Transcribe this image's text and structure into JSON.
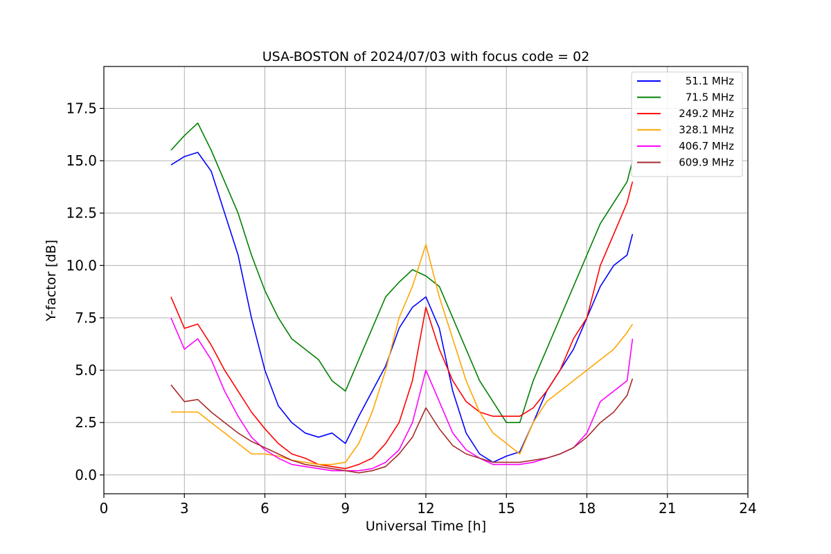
{
  "chart_data": {
    "type": "line",
    "title": "USA-BOSTON of 2024/07/03 with focus code = 02",
    "xlabel": "Universal Time [h]",
    "ylabel": "Y-factor [dB]",
    "xlim": [
      0,
      24
    ],
    "ylim": [
      -0.9,
      19.5
    ],
    "x_ticks": [
      0,
      3,
      6,
      9,
      12,
      15,
      18,
      21,
      24
    ],
    "y_ticks": [
      0.0,
      2.5,
      5.0,
      7.5,
      10.0,
      12.5,
      15.0,
      17.5
    ],
    "y_tick_labels": [
      "0.0",
      "2.5",
      "5.0",
      "7.5",
      "10.0",
      "12.5",
      "15.0",
      "17.5"
    ],
    "grid": true,
    "legend_position": "top-right",
    "series": [
      {
        "name": "51.1 MHz",
        "color": "#0000ff",
        "x": [
          2.5,
          3.0,
          3.5,
          4.0,
          4.5,
          5.0,
          5.5,
          6.0,
          6.5,
          7.0,
          7.5,
          8.0,
          8.5,
          9.0,
          9.5,
          10.0,
          10.5,
          11.0,
          11.5,
          12.0,
          12.5,
          13.0,
          13.5,
          14.0,
          14.5,
          15.0,
          15.5,
          16.0,
          16.5,
          17.0,
          17.5,
          18.0,
          18.5,
          19.0,
          19.5,
          19.7
        ],
        "values": [
          14.8,
          15.2,
          15.4,
          14.5,
          12.5,
          10.5,
          7.5,
          5.0,
          3.3,
          2.5,
          2.0,
          1.8,
          2.0,
          1.5,
          2.8,
          4.0,
          5.2,
          7.0,
          8.0,
          8.5,
          7.0,
          4.0,
          2.0,
          1.0,
          0.6,
          0.9,
          1.1,
          2.5,
          4.0,
          5.0,
          6.0,
          7.5,
          9.0,
          10.0,
          10.5,
          11.5
        ]
      },
      {
        "name": "71.5 MHz",
        "color": "#008000",
        "x": [
          2.5,
          3.0,
          3.5,
          4.0,
          4.5,
          5.0,
          5.5,
          6.0,
          6.5,
          7.0,
          7.5,
          8.0,
          8.5,
          9.0,
          9.5,
          10.0,
          10.5,
          11.0,
          11.5,
          12.0,
          12.5,
          13.0,
          13.5,
          14.0,
          14.5,
          15.0,
          15.5,
          16.0,
          16.5,
          17.0,
          17.5,
          18.0,
          18.5,
          19.0,
          19.5,
          19.7
        ],
        "values": [
          15.5,
          16.2,
          16.8,
          15.5,
          14.0,
          12.5,
          10.5,
          8.8,
          7.5,
          6.5,
          6.0,
          5.5,
          4.5,
          4.0,
          5.5,
          7.0,
          8.5,
          9.2,
          9.8,
          9.5,
          9.0,
          7.5,
          6.0,
          4.5,
          3.5,
          2.5,
          2.5,
          4.5,
          6.0,
          7.5,
          9.0,
          10.5,
          12.0,
          13.0,
          14.0,
          15.0
        ]
      },
      {
        "name": "249.2 MHz",
        "color": "#ff0000",
        "x": [
          2.5,
          3.0,
          3.5,
          4.0,
          4.5,
          5.0,
          5.5,
          6.0,
          6.5,
          7.0,
          7.5,
          8.0,
          8.5,
          9.0,
          9.5,
          10.0,
          10.5,
          11.0,
          11.5,
          12.0,
          12.5,
          13.0,
          13.5,
          14.0,
          14.5,
          15.0,
          15.5,
          16.0,
          16.5,
          17.0,
          17.5,
          18.0,
          18.5,
          19.0,
          19.5,
          19.7
        ],
        "values": [
          8.5,
          7.0,
          7.2,
          6.2,
          5.0,
          4.0,
          3.0,
          2.2,
          1.5,
          1.0,
          0.8,
          0.5,
          0.4,
          0.3,
          0.5,
          0.8,
          1.5,
          2.5,
          4.5,
          8.0,
          6.0,
          4.5,
          3.5,
          3.0,
          2.8,
          2.8,
          2.8,
          3.2,
          4.0,
          5.0,
          6.5,
          7.5,
          10.0,
          11.5,
          13.0,
          14.0
        ]
      },
      {
        "name": "328.1 MHz",
        "color": "#ffa500",
        "x": [
          2.5,
          3.0,
          3.5,
          4.0,
          4.5,
          5.0,
          5.5,
          6.0,
          6.5,
          7.0,
          7.5,
          8.0,
          8.5,
          9.0,
          9.5,
          10.0,
          10.5,
          11.0,
          11.5,
          12.0,
          12.5,
          13.0,
          13.5,
          14.0,
          14.5,
          15.0,
          15.5,
          16.0,
          16.5,
          17.0,
          17.5,
          18.0,
          18.5,
          19.0,
          19.5,
          19.7
        ],
        "values": [
          3.0,
          3.0,
          3.0,
          2.5,
          2.0,
          1.5,
          1.0,
          1.0,
          0.9,
          0.7,
          0.6,
          0.5,
          0.5,
          0.6,
          1.5,
          3.0,
          5.0,
          7.5,
          9.0,
          11.0,
          8.5,
          6.5,
          4.5,
          3.0,
          2.0,
          1.5,
          1.0,
          2.5,
          3.5,
          4.0,
          4.5,
          5.0,
          5.5,
          6.0,
          6.8,
          7.2
        ]
      },
      {
        "name": "406.7 MHz",
        "color": "#ff00ff",
        "x": [
          2.5,
          3.0,
          3.5,
          4.0,
          4.5,
          5.0,
          5.5,
          6.0,
          6.5,
          7.0,
          7.5,
          8.0,
          8.5,
          9.0,
          9.5,
          10.0,
          10.5,
          11.0,
          11.5,
          12.0,
          12.5,
          13.0,
          13.5,
          14.0,
          14.5,
          15.0,
          15.5,
          16.0,
          16.5,
          17.0,
          17.5,
          18.0,
          18.5,
          19.0,
          19.5,
          19.7
        ],
        "values": [
          7.5,
          6.0,
          6.5,
          5.5,
          4.0,
          2.8,
          1.8,
          1.2,
          0.8,
          0.5,
          0.4,
          0.3,
          0.2,
          0.2,
          0.2,
          0.3,
          0.6,
          1.2,
          2.5,
          5.0,
          3.5,
          2.0,
          1.2,
          0.8,
          0.5,
          0.5,
          0.5,
          0.6,
          0.8,
          1.0,
          1.3,
          2.0,
          3.5,
          4.0,
          4.5,
          6.5
        ]
      },
      {
        "name": "609.9 MHz",
        "color": "#a52a2a",
        "x": [
          2.5,
          3.0,
          3.5,
          4.0,
          4.5,
          5.0,
          5.5,
          6.0,
          6.5,
          7.0,
          7.5,
          8.0,
          8.5,
          9.0,
          9.5,
          10.0,
          10.5,
          11.0,
          11.5,
          12.0,
          12.5,
          13.0,
          13.5,
          14.0,
          14.5,
          15.0,
          15.5,
          16.0,
          16.5,
          17.0,
          17.5,
          18.0,
          18.5,
          19.0,
          19.5,
          19.7
        ],
        "values": [
          4.3,
          3.5,
          3.6,
          3.0,
          2.5,
          2.0,
          1.6,
          1.3,
          1.0,
          0.7,
          0.5,
          0.4,
          0.3,
          0.2,
          0.1,
          0.2,
          0.4,
          1.0,
          1.8,
          3.2,
          2.2,
          1.4,
          1.0,
          0.8,
          0.6,
          0.6,
          0.6,
          0.7,
          0.8,
          1.0,
          1.3,
          1.8,
          2.5,
          3.0,
          3.8,
          4.6
        ]
      }
    ]
  }
}
